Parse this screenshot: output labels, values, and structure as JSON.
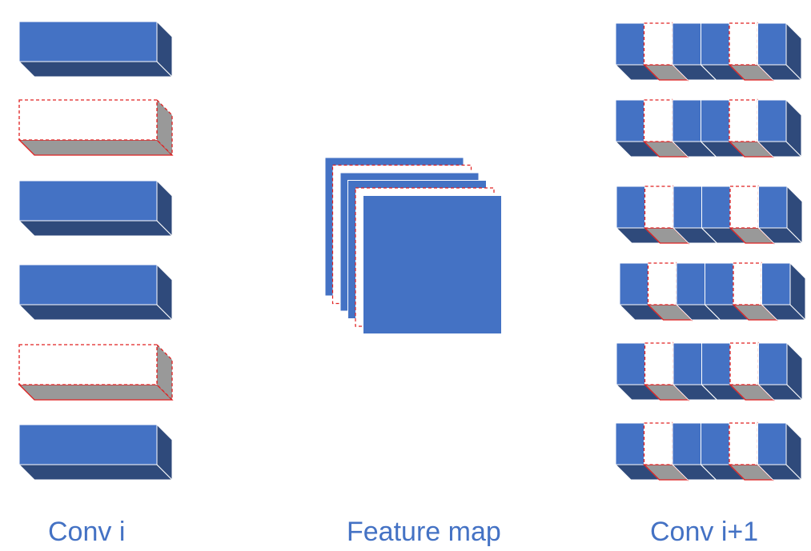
{
  "labels": {
    "left": "Conv i",
    "middle": "Feature map",
    "right": "Conv i+1"
  },
  "colors": {
    "front": "#4472c4",
    "dark": "#2f4a7b",
    "gray": "#999999",
    "edge": "#ffffff",
    "pruned_edge": "#e02020",
    "caption": "#4472c4"
  },
  "conv_i": {
    "filters": [
      {
        "pruned": false
      },
      {
        "pruned": true
      },
      {
        "pruned": false
      },
      {
        "pruned": false
      },
      {
        "pruned": true
      },
      {
        "pruned": false
      }
    ]
  },
  "feature_map": {
    "channels": [
      {
        "pruned": false
      },
      {
        "pruned": true
      },
      {
        "pruned": false
      },
      {
        "pruned": false
      },
      {
        "pruned": true
      },
      {
        "pruned": false
      }
    ]
  },
  "conv_i_plus_1": {
    "kernel_channels": [
      {
        "pruned": false
      },
      {
        "pruned": true
      },
      {
        "pruned": false
      },
      {
        "pruned": false
      },
      {
        "pruned": true
      },
      {
        "pruned": false
      }
    ],
    "filter_count": 6
  }
}
